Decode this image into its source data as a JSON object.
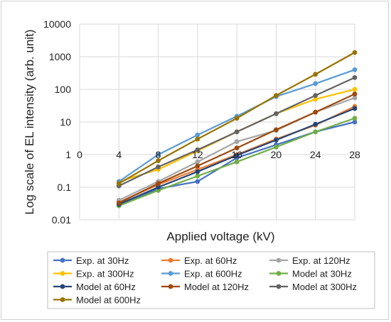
{
  "chart_data": {
    "type": "line",
    "title": "",
    "xlabel": "Applied voltage (kV)",
    "ylabel": "Log scale of EL intensity (arb. unit)",
    "yscale": "log",
    "ylim": [
      0.01,
      10000
    ],
    "xlim": [
      0,
      28
    ],
    "x_ticks": [
      "0",
      "4",
      "8",
      "12",
      "16",
      "20",
      "24",
      "28"
    ],
    "y_ticks": [
      "0.01",
      "0.1",
      "1",
      "10",
      "100",
      "1000",
      "10000"
    ],
    "grid": true,
    "legend_position": "bottom",
    "x": [
      4,
      8,
      12,
      16,
      20,
      24,
      28
    ],
    "series": [
      {
        "name": "Exp. at 30Hz",
        "color": "#4472C4",
        "values": [
          0.03,
          0.09,
          0.15,
          0.8,
          2.0,
          5.0,
          10.0
        ]
      },
      {
        "name": "Exp. at 60Hz",
        "color": "#ED7D31",
        "values": [
          0.035,
          0.12,
          0.35,
          1.0,
          3.0,
          8.0,
          30.0
        ]
      },
      {
        "name": "Exp. at 120Hz",
        "color": "#A5A5A5",
        "values": [
          0.04,
          0.15,
          0.6,
          2.5,
          5.5,
          20.0,
          55.0
        ]
      },
      {
        "name": "Exp. at 300Hz",
        "color": "#FFC000",
        "values": [
          0.15,
          0.35,
          1.3,
          5.0,
          18.0,
          50.0,
          100.0
        ]
      },
      {
        "name": "Exp. at 600Hz",
        "color": "#5B9BD5",
        "values": [
          0.15,
          1.0,
          4.0,
          15.0,
          60.0,
          150.0,
          400.0
        ]
      },
      {
        "name": "Model at 30Hz",
        "color": "#70AD47",
        "values": [
          0.027,
          0.08,
          0.22,
          0.6,
          1.7,
          5.0,
          13.0
        ]
      },
      {
        "name": "Model at 60Hz",
        "color": "#264478",
        "values": [
          0.03,
          0.1,
          0.3,
          0.95,
          2.8,
          8.5,
          26.0
        ]
      },
      {
        "name": "Model at 120Hz",
        "color": "#9E480E",
        "values": [
          0.033,
          0.13,
          0.45,
          1.6,
          5.8,
          20.0,
          72.0
        ]
      },
      {
        "name": "Model at 300Hz",
        "color": "#636363",
        "values": [
          0.11,
          0.42,
          1.4,
          5.0,
          18.0,
          65.0,
          230.0
        ]
      },
      {
        "name": "Model at 600Hz",
        "color": "#997300",
        "values": [
          0.13,
          0.65,
          3.0,
          13.0,
          65.0,
          290.0,
          1350.0
        ]
      }
    ]
  }
}
